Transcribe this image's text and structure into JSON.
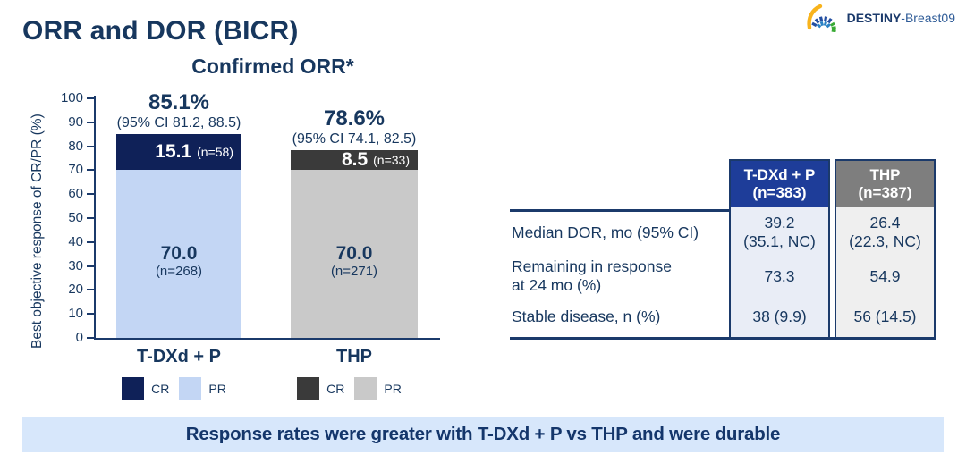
{
  "logo": {
    "name": "DESTINY-Breast09",
    "text_bold": "DESTINY",
    "text_regular": "-Breast09"
  },
  "page_title": "ORR and DOR (BICR)",
  "colors": {
    "navy_text": "#17375e",
    "line_navy": "#1b3a6b",
    "tdxd_cr": "#0f2158",
    "tdxd_pr": "#c3d6f4",
    "thp_cr": "#3a3a3a",
    "thp_pr": "#c9c9c9",
    "table_header_blue": "#1e3d99",
    "table_header_gray": "#7e7e7e",
    "table_cell_blue": "#e9edf6",
    "table_cell_gray": "#efefef",
    "banner_bg": "#d7e7fb"
  },
  "chart_data": {
    "type": "bar",
    "stacked": true,
    "title": "Confirmed ORR*",
    "ylabel": "Best objective response of CR/PR (%)",
    "ylim": [
      0,
      100
    ],
    "ytick_step": 10,
    "grid": false,
    "legend_position": "below-each-bar",
    "categories": [
      "T-DXd + P",
      "THP"
    ],
    "groups": [
      {
        "label": "T-DXd + P",
        "total_pct_label": "85.1%",
        "ci_label": "(95% CI 81.2, 88.5)",
        "segments": [
          {
            "name": "PR",
            "value": 70.0,
            "value_label": "70.0",
            "n_label": "(n=268)",
            "color": "#c3d6f4",
            "text_color": "#17375e"
          },
          {
            "name": "CR",
            "value": 15.1,
            "value_label": "15.1",
            "n_label": "(n=58)",
            "color": "#0f2158",
            "text_color": "#ffffff"
          }
        ],
        "legend": [
          {
            "name": "CR",
            "color": "#0f2158"
          },
          {
            "name": "PR",
            "color": "#c3d6f4"
          }
        ]
      },
      {
        "label": "THP",
        "total_pct_label": "78.6%",
        "ci_label": "(95% CI 74.1, 82.5)",
        "segments": [
          {
            "name": "PR",
            "value": 70.0,
            "value_label": "70.0",
            "n_label": "(n=271)",
            "color": "#c9c9c9",
            "text_color": "#17375e"
          },
          {
            "name": "CR",
            "value": 8.5,
            "value_label": "8.5",
            "n_label": "(n=33)",
            "color": "#3a3a3a",
            "text_color": "#ffffff"
          }
        ],
        "legend": [
          {
            "name": "CR",
            "color": "#3a3a3a"
          },
          {
            "name": "PR",
            "color": "#c9c9c9"
          }
        ]
      }
    ]
  },
  "table": {
    "columns": [
      {
        "id": "tdxd",
        "line1": "T-DXd + P",
        "line2": "(n=383)",
        "header_bg": "#1e3d99",
        "cell_bg": "#e9edf6"
      },
      {
        "id": "thp",
        "line1": "THP",
        "line2": "(n=387)",
        "header_bg": "#7e7e7e",
        "cell_bg": "#efefef"
      }
    ],
    "rows": [
      {
        "label_lines": [
          "Median DOR, mo (95% CI)"
        ],
        "values": [
          [
            "39.2",
            "(35.1, NC)"
          ],
          [
            "26.4",
            "(22.3, NC)"
          ]
        ]
      },
      {
        "label_lines": [
          "Remaining in response",
          "at 24 mo (%)"
        ],
        "values": [
          [
            "73.3"
          ],
          [
            "54.9"
          ]
        ]
      },
      {
        "label_lines": [
          "Stable disease, n (%)"
        ],
        "values": [
          [
            "38 (9.9)"
          ],
          [
            "56 (14.5)"
          ]
        ]
      }
    ]
  },
  "banner": {
    "text": "Response rates were greater with T-DXd + P vs THP and were durable"
  }
}
